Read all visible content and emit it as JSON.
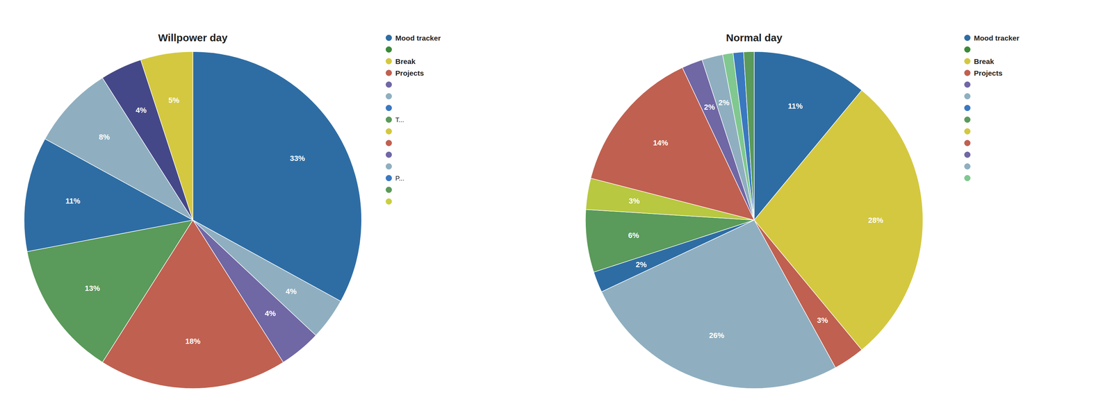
{
  "chart_data": [
    {
      "type": "pie",
      "title": "Willpower day",
      "values": [
        33,
        4,
        4,
        18,
        13,
        11,
        8,
        4,
        5
      ],
      "colors": [
        "#2e6da4",
        "#8fafc0",
        "#7067a5",
        "#c06050",
        "#5a9a5a",
        "#2e6da4",
        "#8fafc0",
        "#454888",
        "#d4c840"
      ],
      "data_labels": true,
      "value_labels": [
        "33%",
        "4%",
        "4%",
        "18%",
        "13%",
        "11%",
        "8%",
        "4%",
        "5%"
      ],
      "legend_entries": [
        {
          "label": "Mood tracker",
          "color": "#2e6da4"
        },
        {
          "label": null,
          "color": "#3a8a3a"
        },
        {
          "label": "Break",
          "color": "#d4c840"
        },
        {
          "label": "Projects",
          "color": "#c06050"
        },
        {
          "label": null,
          "color": "#7067a5"
        },
        {
          "label": null,
          "color": "#8fafc0"
        },
        {
          "label": null,
          "color": "#3a78c0"
        },
        {
          "label": "T...",
          "color": "#5a9a5a"
        },
        {
          "label": null,
          "color": "#d4c840"
        },
        {
          "label": null,
          "color": "#c06050"
        },
        {
          "label": null,
          "color": "#7067a5"
        },
        {
          "label": null,
          "color": "#8fafc0"
        },
        {
          "label": "P...",
          "color": "#3a78c0"
        },
        {
          "label": null,
          "color": "#5a9a5a"
        },
        {
          "label": null,
          "color": "#c8d040"
        }
      ]
    },
    {
      "type": "pie",
      "title": "Normal day",
      "values": [
        11,
        28,
        3,
        26,
        2,
        6,
        3,
        14,
        2,
        2,
        1,
        1,
        1
      ],
      "colors": [
        "#2e6da4",
        "#d4c840",
        "#c06050",
        "#8fafc0",
        "#2e6da4",
        "#5a9a5a",
        "#b8c840",
        "#c06050",
        "#7067a5",
        "#8fafc0",
        "#80c890",
        "#3a78c0",
        "#5a9a5a"
      ],
      "data_labels": true,
      "value_labels": [
        "11%",
        "28%",
        "3%",
        "26%",
        "2%",
        "6%",
        "3%",
        "14%",
        "2%",
        "2%",
        null,
        null,
        null
      ],
      "legend_entries": [
        {
          "label": "Mood tracker",
          "color": "#2e6da4"
        },
        {
          "label": null,
          "color": "#3a8a3a"
        },
        {
          "label": "Break",
          "color": "#d4c840"
        },
        {
          "label": "Projects",
          "color": "#c06050"
        },
        {
          "label": null,
          "color": "#7067a5"
        },
        {
          "label": null,
          "color": "#8fafc0"
        },
        {
          "label": null,
          "color": "#3a78c0"
        },
        {
          "label": null,
          "color": "#5a9a5a"
        },
        {
          "label": null,
          "color": "#d4c840"
        },
        {
          "label": null,
          "color": "#c06050"
        },
        {
          "label": null,
          "color": "#7067a5"
        },
        {
          "label": null,
          "color": "#8fafc0"
        },
        {
          "label": null,
          "color": "#80c890"
        }
      ]
    }
  ]
}
